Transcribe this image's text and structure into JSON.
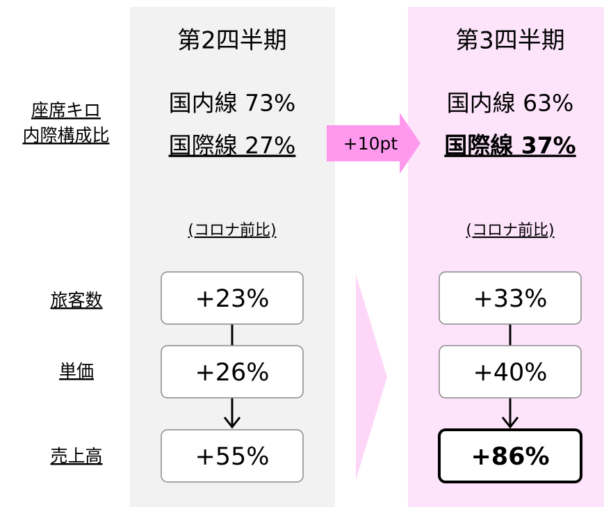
{
  "row_labels": {
    "seat_km": [
      "座席キロ",
      "内際構成比"
    ],
    "rows": [
      "旅客数",
      "単価",
      "売上高"
    ]
  },
  "arrow_label": "+10pt",
  "columns": [
    {
      "title": "第2四半期",
      "domestic": "国内線 73%",
      "international": "国際線 27%",
      "note": "(コロナ前比)",
      "boxes": [
        "+23%",
        "+26%",
        "+55%"
      ]
    },
    {
      "title": "第3四半期",
      "domestic": "国内線 63%",
      "international": "国際線 37%",
      "note": "(コロナ前比)",
      "boxes": [
        "+33%",
        "+40%",
        "+86%"
      ]
    }
  ]
}
